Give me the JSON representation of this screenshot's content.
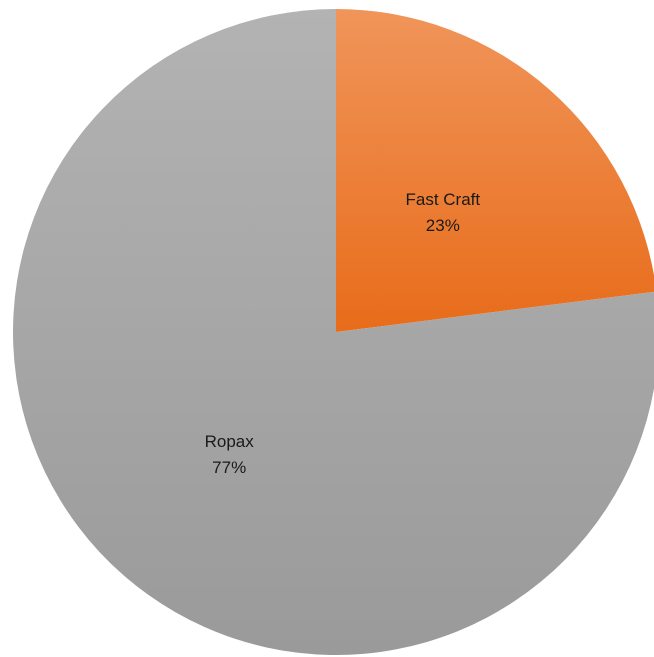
{
  "chart_data": {
    "type": "pie",
    "title": "",
    "start_angle_deg": 0,
    "direction": "clockwise",
    "slices": [
      {
        "name": "Fast Craft",
        "value": 23,
        "percent_label": "23%",
        "color": "#ED7D31",
        "gradient": [
          "#F0955A",
          "#E86C1A"
        ]
      },
      {
        "name": "Ropax",
        "value": 77,
        "percent_label": "77%",
        "color": "#A5A5A5",
        "gradient": [
          "#B3B3B3",
          "#9A9A9A"
        ]
      }
    ],
    "legend": "none",
    "data_labels": "category-and-percent"
  }
}
